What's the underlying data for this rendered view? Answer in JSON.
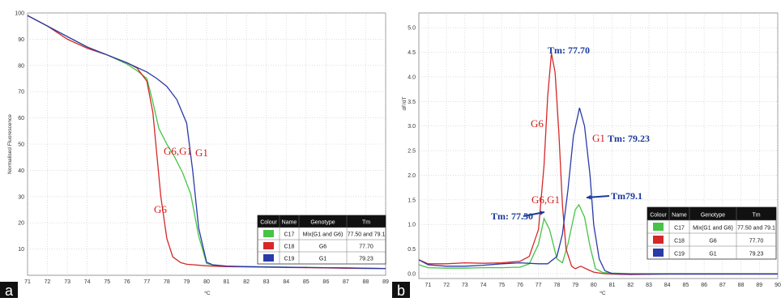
{
  "panels": [
    {
      "id": "a",
      "tag": "a",
      "ylabel": "Normalised Fluorescence",
      "xlabel": "ºC",
      "annotations": [
        "G6,G1",
        "G1",
        "G6"
      ],
      "legend": {
        "headers": [
          "Colour",
          "Name",
          "Genotype",
          "Tm"
        ],
        "rows": [
          {
            "color": "#47c347",
            "name": "C17",
            "genotype": "Mix(G1 and G6)",
            "tm": "77.50 and 79.1"
          },
          {
            "color": "#d62828",
            "name": "C18",
            "genotype": "G6",
            "tm": "77.70"
          },
          {
            "color": "#2a3aa8",
            "name": "C19",
            "genotype": "G1",
            "tm": "79.23"
          }
        ]
      }
    },
    {
      "id": "b",
      "tag": "b",
      "ylabel": "dF/dT",
      "xlabel": "ºC",
      "annotations": [
        "Tm: 77.70",
        "G6",
        "G1",
        "Tm: 79.23",
        "G6,G1",
        "Tm79.1",
        "Tm: 77.50"
      ],
      "legend": {
        "headers": [
          "Colour",
          "Name",
          "Genotype",
          "Tm"
        ],
        "rows": [
          {
            "color": "#47c347",
            "name": "C17",
            "genotype": "Mix(G1 and G6)",
            "tm": "77.50 and 79.1"
          },
          {
            "color": "#d62828",
            "name": "C18",
            "genotype": "G6",
            "tm": "77.70"
          },
          {
            "color": "#2a3aa8",
            "name": "C19",
            "genotype": "G1",
            "tm": "79.23"
          }
        ]
      }
    }
  ],
  "chart_data": [
    {
      "type": "line",
      "xlim": [
        71,
        89
      ],
      "ylim": [
        0,
        100
      ],
      "xticks": [
        71,
        72,
        73,
        74,
        75,
        76,
        77,
        78,
        79,
        80,
        81,
        82,
        83,
        84,
        85,
        86,
        87,
        88,
        89
      ],
      "yticks": [
        10,
        20,
        30,
        40,
        50,
        60,
        70,
        80,
        90,
        100
      ],
      "grid": true,
      "series": [
        {
          "name": "C17",
          "color": "#47c347",
          "x": [
            71,
            72,
            73,
            74,
            75,
            76,
            76.5,
            77,
            77.3,
            77.6,
            78,
            78.4,
            78.8,
            79.2,
            79.6,
            80,
            80.5,
            81,
            82,
            83,
            84,
            85,
            86,
            87,
            88,
            89
          ],
          "y": [
            99,
            95,
            91,
            87,
            84,
            80.5,
            78,
            75,
            66,
            56,
            50,
            45,
            39,
            31,
            15,
            4.5,
            3.6,
            3.4,
            3.3,
            3.2,
            3.1,
            3.0,
            2.9,
            2.8,
            2.7,
            2.6
          ]
        },
        {
          "name": "C18",
          "color": "#d62828",
          "x": [
            71,
            72,
            73,
            74,
            75,
            76,
            76.5,
            77,
            77.3,
            77.5,
            77.7,
            78,
            78.3,
            78.7,
            79,
            80,
            81,
            82,
            83,
            84,
            85,
            86,
            87,
            88,
            89
          ],
          "y": [
            99,
            95,
            90,
            86.5,
            84,
            81,
            79,
            74,
            62,
            46,
            30,
            14,
            7,
            4.8,
            4.2,
            3.6,
            3.3,
            3.2,
            3.1,
            3.0,
            2.9,
            2.8,
            2.7,
            2.6,
            2.6
          ]
        },
        {
          "name": "C19",
          "color": "#2a3aa8",
          "x": [
            71,
            72,
            73,
            74,
            75,
            76,
            77,
            77.5,
            78,
            78.5,
            79,
            79.3,
            79.6,
            80,
            80.3,
            81,
            82,
            83,
            84,
            85,
            86,
            87,
            88,
            89
          ],
          "y": [
            99,
            95,
            91,
            87,
            84,
            81,
            77.5,
            75,
            72,
            67,
            58,
            40,
            18,
            5,
            4,
            3.5,
            3.3,
            3.2,
            3.1,
            3.0,
            2.9,
            2.8,
            2.7,
            2.6
          ]
        }
      ]
    },
    {
      "type": "line",
      "xlim": [
        70.5,
        90
      ],
      "ylim": [
        -0.1,
        5.3
      ],
      "xticks": [
        71,
        72,
        73,
        74,
        75,
        76,
        77,
        78,
        79,
        80,
        81,
        82,
        83,
        84,
        85,
        86,
        87,
        88,
        89,
        90
      ],
      "yticks": [
        0.0,
        0.5,
        1.0,
        1.5,
        2.0,
        2.5,
        3.0,
        3.5,
        4.0,
        4.5,
        5.0
      ],
      "grid": true,
      "series": [
        {
          "name": "C17",
          "color": "#47c347",
          "x": [
            70.5,
            71,
            72,
            73,
            74,
            75,
            76,
            76.5,
            77,
            77.3,
            77.6,
            78,
            78.3,
            78.6,
            79,
            79.2,
            79.5,
            79.8,
            80.1,
            80.5,
            81,
            82,
            84,
            86,
            88,
            90
          ],
          "y": [
            0.18,
            0.12,
            0.11,
            0.11,
            0.12,
            0.12,
            0.13,
            0.2,
            0.6,
            1.12,
            0.9,
            0.3,
            0.22,
            0.6,
            1.3,
            1.4,
            1.15,
            0.55,
            0.1,
            0.02,
            0.01,
            0.0,
            0.0,
            0.0,
            0.0,
            0.0
          ]
        },
        {
          "name": "C18",
          "color": "#d62828",
          "x": [
            70.5,
            71,
            72,
            73,
            74,
            75,
            76,
            76.5,
            77,
            77.3,
            77.5,
            77.7,
            77.9,
            78.1,
            78.3,
            78.5,
            78.8,
            79,
            79.3,
            79.7,
            80,
            80.5,
            81,
            82,
            84,
            86,
            88,
            90
          ],
          "y": [
            0.28,
            0.2,
            0.2,
            0.22,
            0.21,
            0.22,
            0.25,
            0.35,
            0.9,
            2.2,
            3.6,
            4.48,
            4.1,
            2.9,
            1.4,
            0.5,
            0.15,
            0.1,
            0.15,
            0.08,
            0.03,
            0.0,
            -0.01,
            -0.02,
            -0.01,
            -0.01,
            -0.01,
            -0.01
          ]
        },
        {
          "name": "C19",
          "color": "#2a3aa8",
          "x": [
            70.5,
            71,
            72,
            73,
            74,
            75,
            76,
            77,
            77.5,
            78,
            78.3,
            78.6,
            78.9,
            79.23,
            79.5,
            79.8,
            80,
            80.3,
            80.6,
            81,
            82,
            84,
            86,
            88,
            90
          ],
          "y": [
            0.28,
            0.18,
            0.15,
            0.15,
            0.17,
            0.2,
            0.22,
            0.2,
            0.2,
            0.35,
            0.8,
            1.7,
            2.8,
            3.37,
            3.0,
            2.0,
            1.0,
            0.3,
            0.06,
            0.0,
            -0.01,
            -0.01,
            -0.01,
            -0.01,
            -0.01
          ]
        }
      ]
    }
  ]
}
